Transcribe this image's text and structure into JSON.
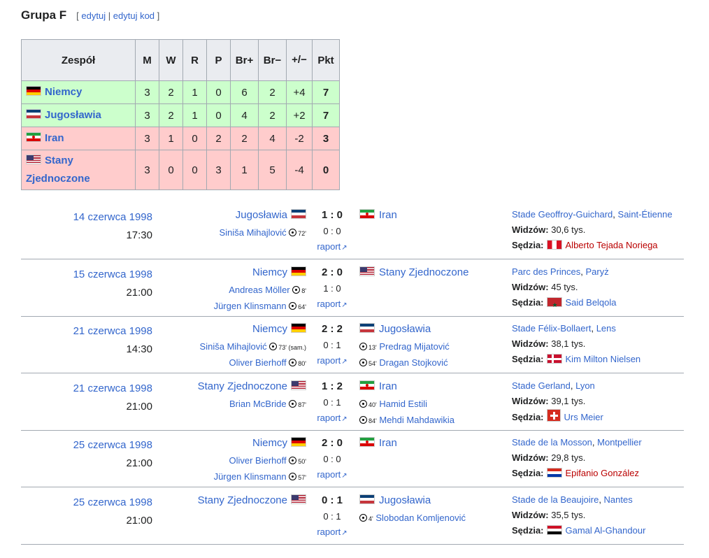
{
  "heading": {
    "title": "Grupa F",
    "edit": "edytuj",
    "edit_code": "edytuj kod",
    "bracket_open": "[",
    "bracket_close": "]",
    "sep": "|"
  },
  "standings": {
    "headers": [
      "Zespół",
      "M",
      "W",
      "R",
      "P",
      "Br+",
      "Br−",
      "+/−",
      "Pkt"
    ],
    "rows": [
      {
        "team": "Niemcy",
        "flag": "ger",
        "m": "3",
        "w": "2",
        "r": "1",
        "p": "0",
        "bp": "6",
        "bm": "2",
        "diff": "+4",
        "pkt": "7"
      },
      {
        "team": "Jugosławia",
        "flag": "yug",
        "m": "3",
        "w": "2",
        "r": "1",
        "p": "0",
        "bp": "4",
        "bm": "2",
        "diff": "+2",
        "pkt": "7"
      },
      {
        "team": "Iran",
        "flag": "irn",
        "m": "3",
        "w": "1",
        "r": "0",
        "p": "2",
        "bp": "2",
        "bm": "4",
        "diff": "-2",
        "pkt": "3"
      },
      {
        "team": "Stany Zjednoczone",
        "flag": "usa",
        "m": "3",
        "w": "0",
        "r": "0",
        "p": "3",
        "bp": "1",
        "bm": "5",
        "diff": "-4",
        "pkt": "0"
      }
    ]
  },
  "labels": {
    "raport": "raport",
    "widzow": "Widzów:",
    "sedzia": "Sędzia:"
  },
  "matches": [
    {
      "date": "14 czerwca 1998",
      "time": "17:30",
      "home": "Jugosławia",
      "home_flag": "yug",
      "score": "1 : 0",
      "ht": "0 : 0",
      "away": "Iran",
      "away_flag": "irn",
      "home_scorers": [
        {
          "name": "Siniša Mihajlović",
          "min": "72'"
        }
      ],
      "away_scorers": [],
      "stadium": "Stade Geoffroy-Guichard",
      "city": "Saint-Étienne",
      "attendance": "30,6 tys.",
      "referee": "Alberto Tejada Noriega",
      "ref_flag": "per"
    },
    {
      "date": "15 czerwca 1998",
      "time": "21:00",
      "home": "Niemcy",
      "home_flag": "ger",
      "score": "2 : 0",
      "ht": "1 : 0",
      "away": "Stany Zjednoczone",
      "away_flag": "usa",
      "home_scorers": [
        {
          "name": "Andreas Möller",
          "min": "8'"
        },
        {
          "name": "Jürgen Klinsmann",
          "min": "64'"
        }
      ],
      "away_scorers": [],
      "stadium": "Parc des Princes",
      "city": "Paryż",
      "attendance": "45 tys.",
      "referee": "Said Belqola",
      "ref_flag": "mar"
    },
    {
      "date": "21 czerwca 1998",
      "time": "14:30",
      "home": "Niemcy",
      "home_flag": "ger",
      "score": "2 : 2",
      "ht": "0 : 1",
      "away": "Jugosławia",
      "away_flag": "yug",
      "home_scorers": [
        {
          "name": "Siniša Mihajlović",
          "min": "73' (sam.)"
        },
        {
          "name": "Oliver Bierhoff",
          "min": "80'"
        }
      ],
      "away_scorers": [
        {
          "name": "Predrag Mijatović",
          "min": "13'"
        },
        {
          "name": "Dragan Stojković",
          "min": "54'"
        }
      ],
      "stadium": "Stade Félix-Bollaert",
      "city": "Lens",
      "attendance": "38,1 tys.",
      "referee": "Kim Milton Nielsen",
      "ref_flag": "den"
    },
    {
      "date": "21 czerwca 1998",
      "time": "21:00",
      "home": "Stany Zjednoczone",
      "home_flag": "usa",
      "score": "1 : 2",
      "ht": "0 : 1",
      "away": "Iran",
      "away_flag": "irn",
      "home_scorers": [
        {
          "name": "Brian McBride",
          "min": "87'"
        }
      ],
      "away_scorers": [
        {
          "name": "Hamid Estili",
          "min": "40'"
        },
        {
          "name": "Mehdi Mahdawikia",
          "min": "84'"
        }
      ],
      "stadium": "Stade Gerland",
      "city": "Lyon",
      "attendance": "39,1 tys.",
      "referee": "Urs Meier",
      "ref_flag": "sui"
    },
    {
      "date": "25 czerwca 1998",
      "time": "21:00",
      "home": "Niemcy",
      "home_flag": "ger",
      "score": "2 : 0",
      "ht": "0 : 0",
      "away": "Iran",
      "away_flag": "irn",
      "home_scorers": [
        {
          "name": "Oliver Bierhoff",
          "min": "50'"
        },
        {
          "name": "Jürgen Klinsmann",
          "min": "57'"
        }
      ],
      "away_scorers": [],
      "stadium": "Stade de la Mosson",
      "city": "Montpellier",
      "attendance": "29,8 tys.",
      "referee": "Epifanio González",
      "ref_flag": "par"
    },
    {
      "date": "25 czerwca 1998",
      "time": "21:00",
      "home": "Stany Zjednoczone",
      "home_flag": "usa",
      "score": "0 : 1",
      "ht": "0 : 1",
      "away": "Jugosławia",
      "away_flag": "yug",
      "home_scorers": [],
      "away_scorers": [
        {
          "name": "Slobodan Komljenović",
          "min": "4'"
        }
      ],
      "stadium": "Stade de la Beaujoire",
      "city": "Nantes",
      "attendance": "35,5 tys.",
      "referee": "Gamal Al-Ghandour",
      "ref_flag": "egy"
    }
  ]
}
